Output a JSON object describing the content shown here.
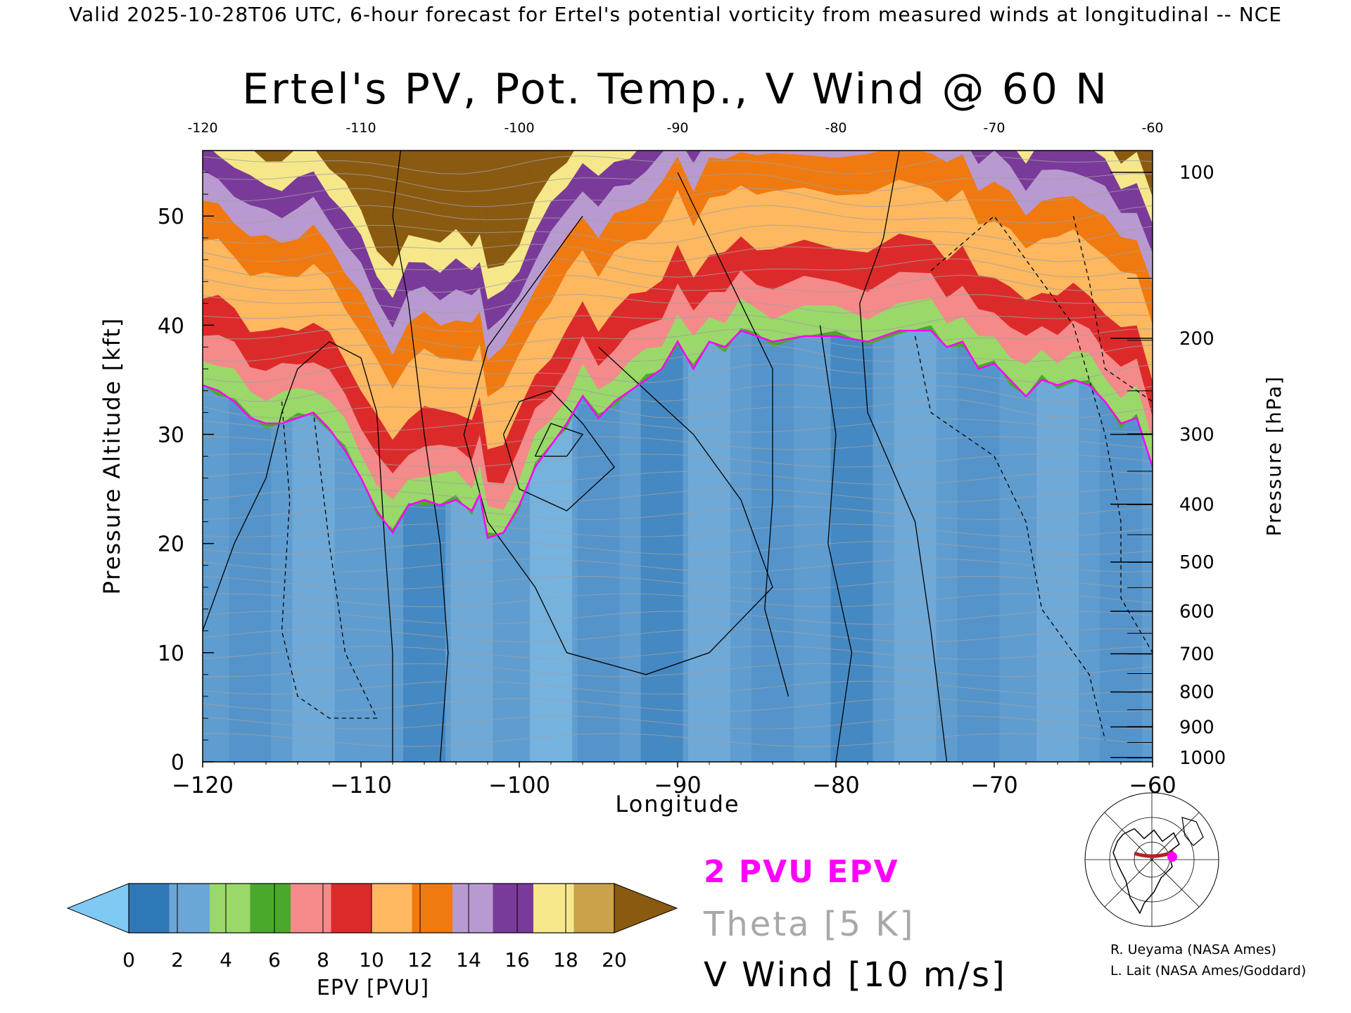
{
  "header": "Valid 2025-10-28T06 UTC, 6-hour forecast for Ertel's potential vorticity from measured winds at longitudinal -- NCE",
  "chart_data": {
    "type": "heatmap",
    "title": "Ertel's PV, Pot. Temp., V Wind @ 60 N",
    "xlabel": "Longitude",
    "ylabel_left": "Pressure Altitude [kft]",
    "ylabel_right": "Pressure [hPa]",
    "xlim": [
      -120,
      -60
    ],
    "ylim_kft": [
      0,
      56
    ],
    "x_ticks": [
      -120,
      -110,
      -100,
      -90,
      -80,
      -70,
      -60
    ],
    "x_tick_labels": [
      "−120",
      "−110",
      "−100",
      "−90",
      "−80",
      "−70",
      "−60"
    ],
    "x_top_tick_labels": [
      "-120",
      "-110",
      "-100",
      "-90",
      "-80",
      "-70",
      "-60"
    ],
    "y_left_ticks": [
      0,
      10,
      20,
      30,
      40,
      50
    ],
    "y_right_ticks_hpa": [
      100,
      200,
      300,
      400,
      500,
      600,
      700,
      800,
      900,
      1000
    ],
    "y_right_tick_kft": [
      54.0,
      38.8,
      30.0,
      23.6,
      18.3,
      13.8,
      9.9,
      6.4,
      3.2,
      0.4
    ],
    "tropopause_2pvu_kft": [
      [
        -120,
        34.5
      ],
      [
        -119,
        34
      ],
      [
        -118,
        33
      ],
      [
        -117,
        31.5
      ],
      [
        -116,
        31
      ],
      [
        -115,
        31
      ],
      [
        -114,
        31.5
      ],
      [
        -113,
        32
      ],
      [
        -112,
        30.5
      ],
      [
        -111,
        28.5
      ],
      [
        -110,
        26
      ],
      [
        -109,
        23
      ],
      [
        -108,
        21
      ],
      [
        -107,
        23.5
      ],
      [
        -106,
        24
      ],
      [
        -105,
        23.5
      ],
      [
        -104,
        24
      ],
      [
        -103,
        23
      ],
      [
        -102.5,
        24.5
      ],
      [
        -102,
        20.5
      ],
      [
        -101,
        21
      ],
      [
        -100,
        23.5
      ],
      [
        -99,
        27
      ],
      [
        -98,
        29
      ],
      [
        -97,
        31
      ],
      [
        -96,
        33.5
      ],
      [
        -95,
        31.5
      ],
      [
        -94,
        33
      ],
      [
        -93,
        34
      ],
      [
        -92,
        35
      ],
      [
        -91,
        36
      ],
      [
        -90,
        38.5
      ],
      [
        -89,
        36
      ],
      [
        -88,
        38.5
      ],
      [
        -87,
        38
      ],
      [
        -86,
        39.5
      ],
      [
        -85,
        39
      ],
      [
        -84,
        38.5
      ],
      [
        -82,
        39
      ],
      [
        -80,
        39
      ],
      [
        -78,
        38.5
      ],
      [
        -76,
        39.5
      ],
      [
        -74,
        39.5
      ],
      [
        -73,
        38
      ],
      [
        -72,
        38.5
      ],
      [
        -71,
        36
      ],
      [
        -70,
        36.5
      ],
      [
        -69,
        35
      ],
      [
        -68,
        33.5
      ],
      [
        -67,
        35
      ],
      [
        -66,
        34.5
      ],
      [
        -65,
        35
      ],
      [
        -64,
        34.5
      ],
      [
        -63,
        33
      ],
      [
        -62,
        31
      ],
      [
        -61,
        31.5
      ],
      [
        -60,
        27
      ]
    ],
    "colorbar": {
      "label": "EPV [PVU]",
      "ticks": [
        0,
        2,
        4,
        6,
        8,
        10,
        12,
        14,
        16,
        18,
        20
      ],
      "colors": [
        "#2f78b8",
        "#6aa6d6",
        "#9ad86a",
        "#4aa82a",
        "#f58a8a",
        "#dc2a2a",
        "#fdb860",
        "#f07a10",
        "#b89ad0",
        "#7a3a9a",
        "#f6e88a",
        "#c9a24a"
      ],
      "under_color": "#7fcaf4",
      "over_color": "#8a5a10"
    }
  },
  "legend": {
    "epv_contour": "2 PVU EPV",
    "theta": "Theta [5 K]",
    "vwind": "V Wind [10 m/s]",
    "epv_color": "#ff00ff",
    "theta_color": "#a0a0a0",
    "vwind_color": "#000000"
  },
  "credits": [
    "R. Ueyama (NASA Ames)",
    "L. Lait (NASA Ames/Goddard)"
  ],
  "colors": {
    "background": "#ffffff",
    "trace": "#b22222",
    "marker": "#ff00ff"
  }
}
